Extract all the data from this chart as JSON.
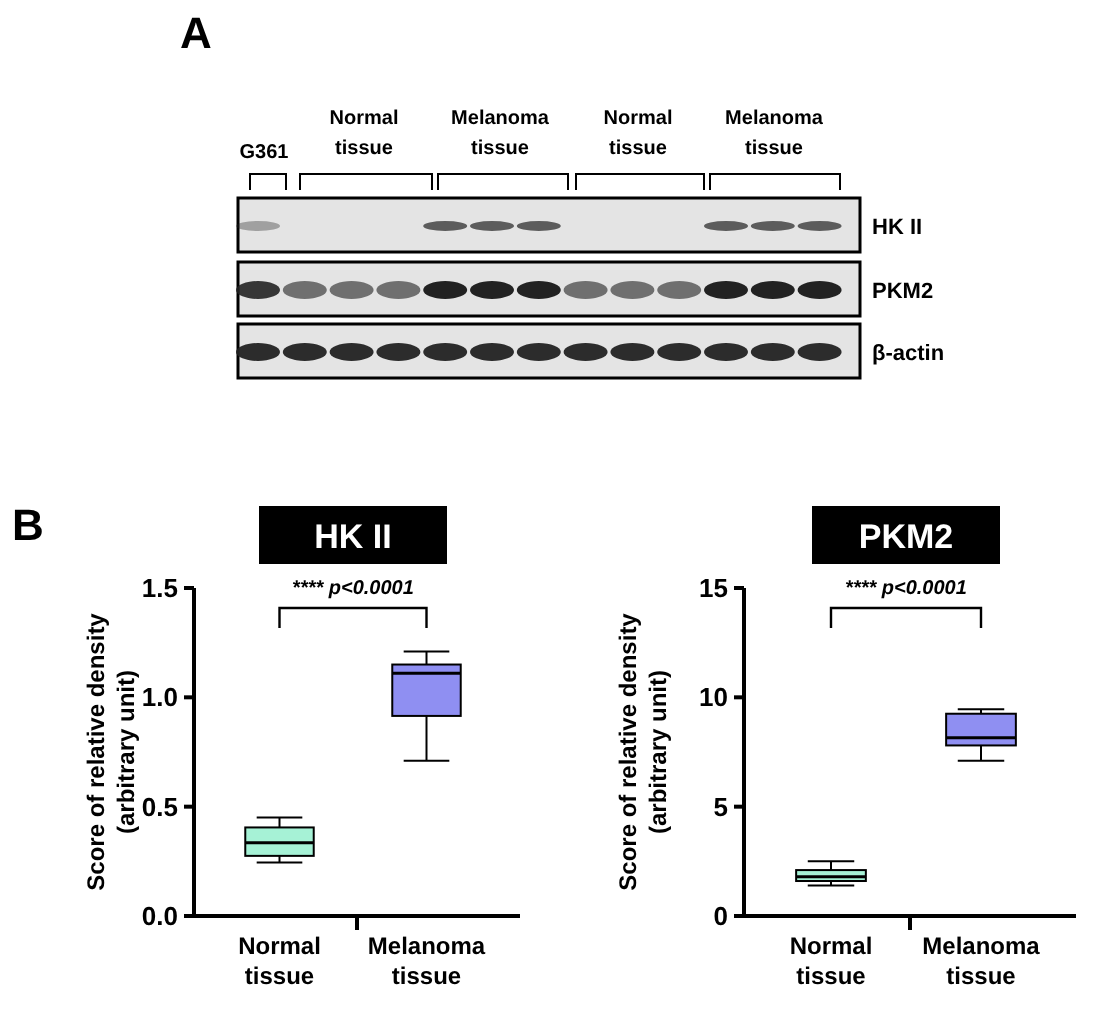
{
  "chart_data": [
    {
      "type": "other",
      "annotations": [
        "A",
        "G361",
        "Normal tissue",
        "Melanoma tissue",
        "Normal tissue",
        "Melanoma tissue",
        "HK II",
        "PKM2",
        "β-actin"
      ]
    },
    {
      "type": "box",
      "title": "HK II",
      "ylabel": "Score of relative density\n(arbitrary unit)",
      "categories": [
        "Normal tissue",
        "Melanoma tissue"
      ],
      "colors": [
        "#a6f2d6",
        "#8f8ff2"
      ],
      "ylim": [
        0,
        1.5
      ],
      "yticks": [
        {
          "value": 0,
          "label": "0.0"
        },
        {
          "value": 0.5,
          "label": "0.5"
        },
        {
          "value": 1,
          "label": "1.0"
        },
        {
          "value": 1.5,
          "label": "1.5"
        }
      ],
      "boxes": [
        {
          "low": 0.245,
          "q1": 0.275,
          "median": 0.335,
          "q3": 0.405,
          "high": 0.45
        },
        {
          "low": 0.71,
          "q1": 0.915,
          "median": 1.11,
          "q3": 1.15,
          "high": 1.21
        }
      ],
      "annotations": [
        "B",
        "**** p<0.0001"
      ]
    },
    {
      "type": "box",
      "title": "PKM2",
      "ylabel": "Score of relative density\n(arbitrary unit)",
      "categories": [
        "Normal tissue",
        "Melanoma tissue"
      ],
      "colors": [
        "#a6f2d6",
        "#8f8ff2"
      ],
      "ylim": [
        0,
        15
      ],
      "yticks": [
        0,
        5,
        10,
        15
      ],
      "boxes": [
        {
          "low": 1.4,
          "q1": 1.6,
          "median": 1.8,
          "q3": 2.1,
          "high": 2.5
        },
        {
          "low": 7.1,
          "q1": 7.8,
          "median": 8.15,
          "q3": 9.25,
          "high": 9.45
        }
      ],
      "annotations": [
        "**** p<0.0001"
      ]
    }
  ]
}
